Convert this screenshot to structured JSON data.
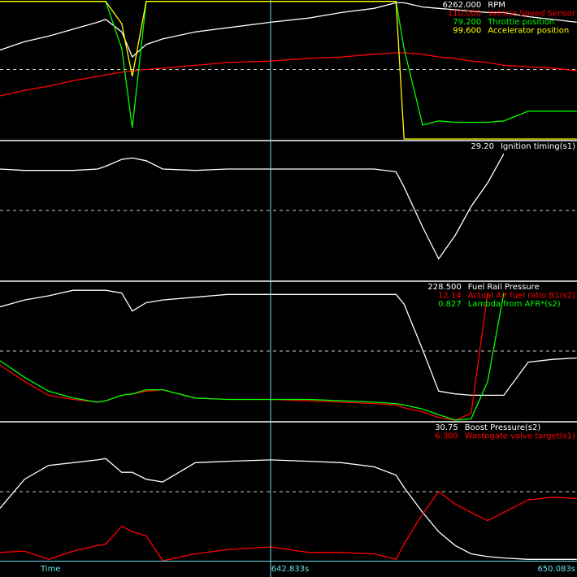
{
  "time_axis": {
    "label": "Time",
    "cursor": {
      "value": 642.833,
      "label": "642.833s"
    },
    "end": {
      "value": 650.083,
      "label": "650.083s"
    }
  },
  "chart_data": [
    {
      "type": "line",
      "xlim": [
        636.43,
        650.083
      ],
      "ylim": [
        0,
        100
      ],
      "x": [
        636.43,
        637.01,
        637.58,
        638.16,
        638.74,
        638.93,
        639.31,
        639.56,
        639.89,
        640.28,
        641.05,
        641.81,
        642.83,
        643.74,
        644.51,
        645.28,
        645.8,
        645.99,
        646.43,
        646.81,
        647.2,
        647.58,
        647.97,
        648.35,
        648.93,
        649.51,
        650.08
      ],
      "series": [
        {
          "name": "RPM",
          "cursor_value": "6262.000",
          "color": "#ffffff",
          "values": [
            64,
            70,
            74,
            79,
            84,
            86,
            77,
            59,
            68,
            72,
            77,
            80,
            84,
            87,
            91,
            94,
            98,
            98,
            95,
            94,
            93,
            92,
            91,
            91,
            88,
            86,
            84
          ]
        },
        {
          "name": "Vehicle Speed Sensor",
          "cursor_value": "110.000",
          "color": "#ff0000",
          "values": [
            31,
            35,
            38,
            42,
            45,
            46,
            48,
            49,
            50,
            51,
            53,
            55,
            56,
            58,
            59,
            61,
            62,
            62,
            61,
            59,
            58,
            56,
            55,
            53,
            52,
            51,
            49
          ]
        },
        {
          "name": "Throttle position",
          "cursor_value": "79.200",
          "color": "#00ff00",
          "values": [
            99,
            99,
            99,
            99,
            99,
            99,
            65,
            8,
            99,
            99,
            99,
            99,
            99,
            99,
            99,
            99,
            99,
            65,
            10,
            13,
            12,
            12,
            12,
            13,
            20,
            20,
            20
          ]
        },
        {
          "name": "Accelerator position",
          "cursor_value": "99.600",
          "color": "#ffff00",
          "values": [
            99,
            99,
            99,
            99,
            99,
            99,
            83,
            45,
            99,
            99,
            99,
            99,
            99,
            99,
            99,
            99,
            99,
            0,
            0,
            0,
            0,
            0,
            0,
            0,
            0,
            0,
            0
          ]
        }
      ]
    },
    {
      "type": "line",
      "xlim": [
        636.43,
        650.083
      ],
      "ylim": [
        0,
        100
      ],
      "x": [
        636.43,
        637.01,
        637.58,
        638.16,
        638.74,
        638.93,
        639.31,
        639.56,
        639.89,
        640.28,
        641.05,
        641.81,
        642.83,
        643.74,
        644.51,
        645.28,
        645.8,
        645.99,
        646.43,
        646.81,
        647.2,
        647.58,
        647.97,
        648.35,
        648.93,
        649.51,
        650.08
      ],
      "series": [
        {
          "name": "Ignition timing(s1)",
          "cursor_value": "29.20",
          "color": "#ffffff",
          "values": [
            80,
            79,
            79,
            79,
            80,
            82,
            87,
            88,
            86,
            80,
            79,
            80,
            80,
            80,
            80,
            80,
            78,
            67,
            38,
            15,
            32,
            53,
            70,
            91,
            null,
            null,
            null
          ]
        }
      ]
    },
    {
      "type": "line",
      "xlim": [
        636.43,
        650.083
      ],
      "ylim": [
        0,
        100
      ],
      "x": [
        636.43,
        637.01,
        637.58,
        638.16,
        638.74,
        638.93,
        639.31,
        639.56,
        639.89,
        640.28,
        641.05,
        641.81,
        642.83,
        643.74,
        644.51,
        645.28,
        645.8,
        645.99,
        646.43,
        646.81,
        647.2,
        647.58,
        647.97,
        648.35,
        648.93,
        649.51,
        650.08
      ],
      "series": [
        {
          "name": "Fuel Rail Pressure",
          "cursor_value": "228.500",
          "color": "#ffffff",
          "values": [
            82,
            87,
            90,
            94,
            94,
            94,
            92,
            79,
            85,
            87,
            89,
            91,
            91,
            91,
            91,
            91,
            91,
            84,
            51,
            21,
            19,
            18,
            18,
            18,
            42,
            44,
            45
          ]
        },
        {
          "name": "Actual Air fuel ratio B1(s2)",
          "cursor_value": "12.14",
          "color": "#ff0000",
          "values": [
            40,
            28,
            18,
            15,
            13,
            14,
            18,
            19,
            21,
            22,
            16,
            15,
            15,
            14,
            13,
            12,
            11,
            9,
            6,
            2,
            0,
            5,
            92,
            null,
            null,
            null,
            null
          ]
        },
        {
          "name": "Lambda from AFR*(s2)",
          "cursor_value": "0.827",
          "color": "#00ff00",
          "values": [
            43,
            31,
            21,
            16,
            13,
            14,
            18,
            19,
            22,
            22,
            16,
            15,
            15,
            15,
            14,
            13,
            12,
            11,
            8,
            4,
            0,
            1,
            28,
            92,
            null,
            null,
            null
          ]
        }
      ]
    },
    {
      "type": "line",
      "xlim": [
        636.43,
        650.083
      ],
      "ylim": [
        0,
        100
      ],
      "x": [
        636.43,
        637.01,
        637.58,
        638.16,
        638.74,
        638.93,
        639.31,
        639.56,
        639.89,
        640.28,
        641.05,
        641.81,
        642.83,
        643.74,
        644.51,
        645.28,
        645.8,
        645.99,
        646.43,
        646.81,
        647.2,
        647.58,
        647.97,
        648.35,
        648.93,
        649.51,
        650.08
      ],
      "series": [
        {
          "name": "Boost Pressure(s2)",
          "cursor_value": "30.75",
          "color": "#ffffff",
          "values": [
            38,
            59,
            69,
            71,
            73,
            74,
            64,
            64,
            59,
            57,
            71,
            72,
            73,
            72,
            71,
            68,
            62,
            53,
            35,
            21,
            11,
            5,
            3,
            2,
            1,
            1,
            1
          ]
        },
        {
          "name": "Wastegate valve target(s1)",
          "cursor_value": "6.300",
          "color": "#ff0000",
          "values": [
            6,
            7,
            1,
            7,
            11,
            12,
            25,
            21,
            18,
            0,
            5,
            8,
            10,
            6,
            6,
            5,
            1,
            12,
            34,
            50,
            41,
            35,
            29,
            35,
            44,
            46,
            45
          ]
        }
      ]
    }
  ]
}
